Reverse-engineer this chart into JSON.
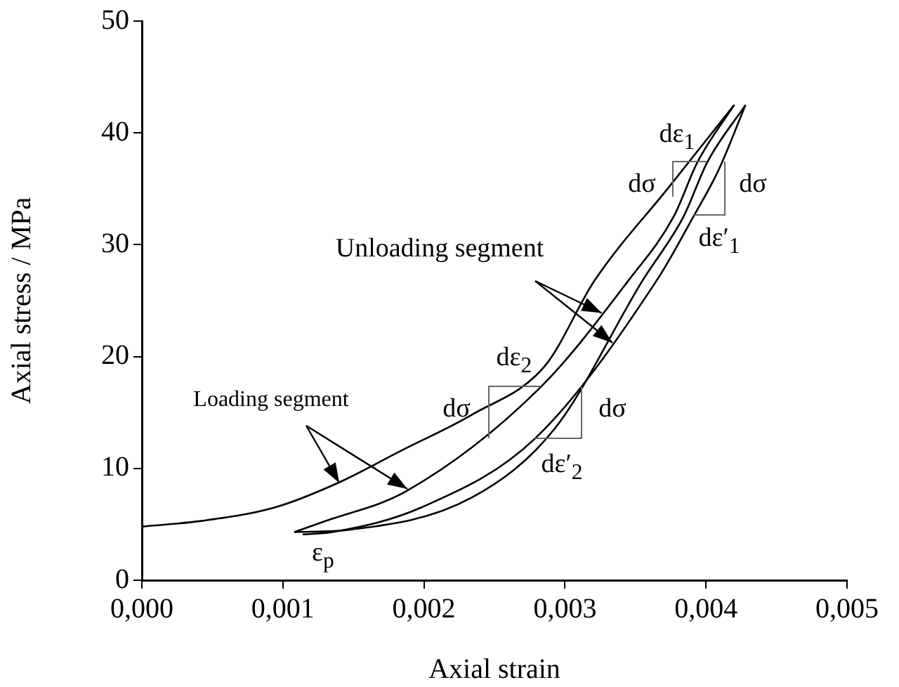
{
  "chart_data": {
    "type": "line",
    "xlabel": "Axial strain",
    "ylabel": "Axial stress / MPa",
    "xlim": [
      0,
      0.005
    ],
    "ylim": [
      0,
      50
    ],
    "xticks": [
      {
        "value": 0,
        "label": "0,000"
      },
      {
        "value": 0.001,
        "label": "0,001"
      },
      {
        "value": 0.002,
        "label": "0,002"
      },
      {
        "value": 0.003,
        "label": "0,003"
      },
      {
        "value": 0.004,
        "label": "0,004"
      },
      {
        "value": 0.005,
        "label": "0,005"
      }
    ],
    "yticks": [
      0,
      10,
      20,
      30,
      40,
      50
    ],
    "grid": false,
    "legend": false,
    "marker": "none",
    "line_style": "solid",
    "series": [
      {
        "color": "#000000",
        "x": [
          0,
          0.00042,
          0.00094,
          0.00139,
          0.00184,
          0.00234,
          0.00286,
          0.00321,
          0.00374,
          0.0042
        ],
        "values": [
          4.8,
          5.3,
          6.5,
          8.7,
          11.6,
          14.8,
          19.2,
          26.8,
          35.2,
          42.5
        ]
      },
      {
        "color": "#000000",
        "x": [
          0.0042,
          0.00394,
          0.00377,
          0.00345,
          0.00283,
          0.00188,
          0.00128,
          0.00108
        ],
        "values": [
          42.5,
          37.4,
          32.5,
          26.8,
          17.3,
          8.0,
          5.2,
          4.3
        ]
      },
      {
        "color": "#000000",
        "x": [
          0.00108,
          0.00146,
          0.00234,
          0.00293,
          0.00355,
          0.00384,
          0.00401,
          0.00428
        ],
        "values": [
          4.3,
          4.5,
          7.4,
          13.6,
          26.8,
          32.5,
          37.4,
          42.5
        ]
      },
      {
        "color": "#000000",
        "x": [
          0.00428,
          0.00409,
          0.00391,
          0.00365,
          0.00279,
          0.00198,
          0.00135,
          0.00114
        ],
        "values": [
          42.5,
          36.7,
          32.5,
          26.8,
          12.7,
          6.5,
          4.3,
          4.1
        ]
      }
    ],
    "annotations": [
      {
        "text": "Loading segment",
        "x": 0.0014,
        "y": 8.7
      },
      {
        "text": "Unloading segment",
        "x": 0.00326,
        "y": 23.9
      },
      "dε$_{1}$",
      "dσ",
      "dσ",
      "dε′$_{1}$",
      "dε$_{2}$",
      "dσ",
      "dσ",
      "dε′$_{2}$",
      "ε$_{p}$"
    ]
  }
}
